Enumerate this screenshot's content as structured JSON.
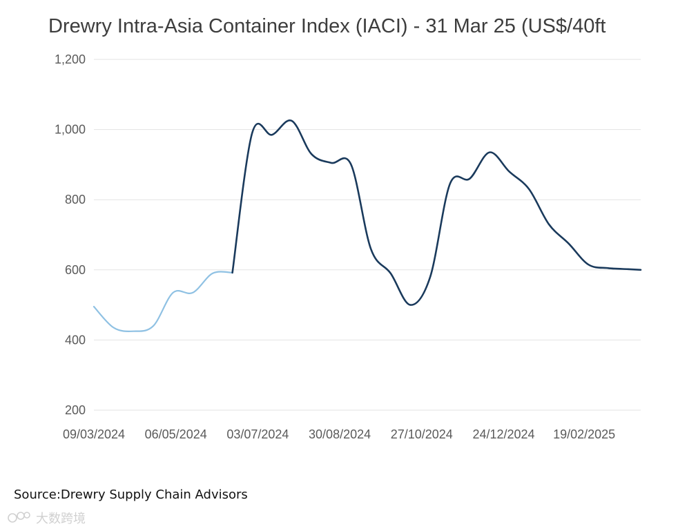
{
  "chart_data": {
    "type": "line",
    "title": "Drewry Intra-Asia Container Index (IACI) - 31 Mar 25 (US$/40ft",
    "xlabel": "",
    "ylabel": "",
    "ylim": [
      200,
      1200
    ],
    "y_ticks": [
      200,
      400,
      600,
      800,
      1000,
      1200
    ],
    "y_tick_labels": [
      "200",
      "400",
      "600",
      "800",
      "1,000",
      "1,200"
    ],
    "x_tick_labels": [
      "09/03/2024",
      "06/05/2024",
      "03/07/2024",
      "30/08/2024",
      "27/10/2024",
      "24/12/2024",
      "19/02/2025"
    ],
    "grid": true,
    "legend": "none",
    "colors": {
      "early_segment": "#8fc1e3",
      "main_segment": "#1a3a5c",
      "grid": "#e3e3e3"
    },
    "series": [
      {
        "color": "#8fc1e3",
        "x": [
          "09/03/2024",
          "23/03/2024",
          "06/04/2024",
          "20/04/2024",
          "04/05/2024",
          "18/05/2024",
          "01/06/2024",
          "15/06/2024"
        ],
        "y": [
          495,
          435,
          425,
          440,
          535,
          535,
          590,
          592
        ]
      },
      {
        "color": "#1a3a5c",
        "x": [
          "15/06/2024",
          "29/06/2024",
          "13/07/2024",
          "27/07/2024",
          "10/08/2024",
          "24/08/2024",
          "07/09/2024",
          "21/09/2024",
          "05/10/2024",
          "19/10/2024",
          "02/11/2024",
          "16/11/2024",
          "30/11/2024",
          "14/12/2024",
          "28/12/2024",
          "11/01/2025",
          "25/01/2025",
          "08/02/2025",
          "22/02/2025",
          "08/03/2025",
          "22/03/2025",
          "31/03/2025"
        ],
        "y": [
          592,
          990,
          985,
          1025,
          930,
          905,
          900,
          660,
          590,
          500,
          580,
          845,
          860,
          935,
          880,
          830,
          730,
          675,
          615,
          605,
          602,
          600
        ]
      }
    ]
  },
  "source": {
    "label": "Source:Drewry Supply Chain Advisors"
  },
  "watermark": {
    "label": "大数跨境"
  }
}
